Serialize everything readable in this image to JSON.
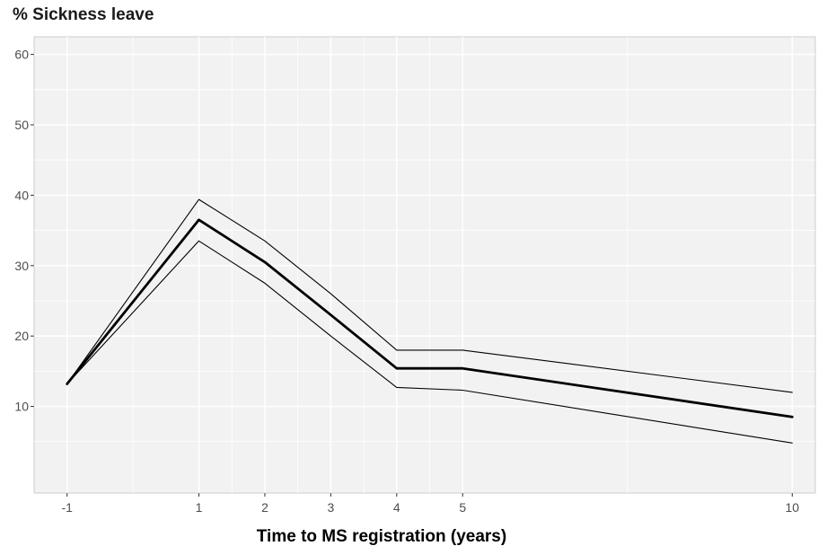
{
  "chart_data": {
    "type": "line",
    "title": "% Sickness leave",
    "xlabel": "Time to MS registration (years)",
    "ylabel": "",
    "x": [
      -1,
      1,
      2,
      3,
      4,
      5,
      10
    ],
    "x_ticks": [
      "-1",
      "1",
      "2",
      "3",
      "4",
      "5",
      "10"
    ],
    "y_ticks": [
      "10",
      "20",
      "30",
      "40",
      "50",
      "60"
    ],
    "xlim": [
      -1.5,
      10.35
    ],
    "ylim": [
      -2.3,
      62.5
    ],
    "grid": true,
    "legend": "none",
    "series": [
      {
        "role": "upper",
        "values": [
          13.2,
          39.4,
          33.5,
          26.0,
          18.0,
          18.0,
          12.0
        ]
      },
      {
        "role": "estimate",
        "values": [
          13.2,
          36.5,
          30.5,
          23.0,
          15.4,
          15.4,
          8.5
        ]
      },
      {
        "role": "lower",
        "values": [
          13.2,
          33.5,
          27.5,
          20.0,
          12.7,
          12.3,
          4.8
        ]
      }
    ],
    "colors": {
      "panel_background": "#f2f2f2",
      "grid_line": "#ffffff",
      "line": "#000000"
    }
  }
}
